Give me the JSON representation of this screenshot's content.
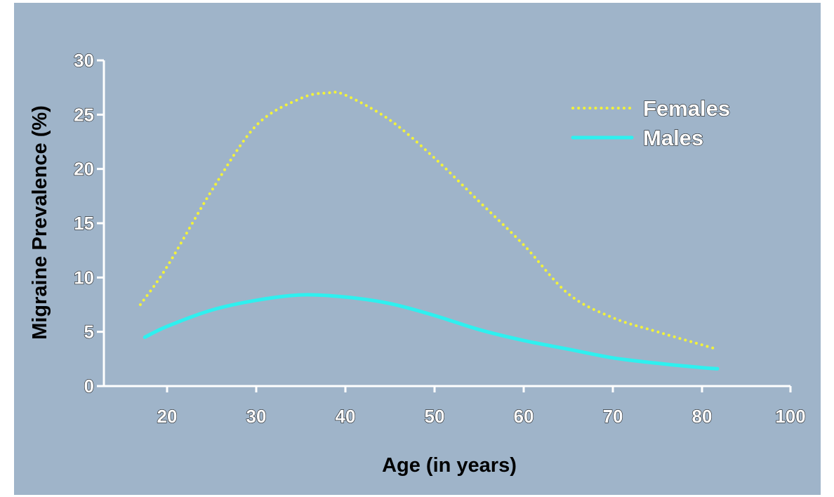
{
  "chart_data": {
    "type": "line",
    "title": "",
    "xlabel": "Age (in years)",
    "ylabel": "Migraine Prevalence (%)",
    "xlim": [
      10,
      100
    ],
    "ylim": [
      0,
      30
    ],
    "x_ticks": [
      20,
      30,
      40,
      50,
      60,
      70,
      80,
      100
    ],
    "x_tick_labels": [
      "20",
      "30",
      "40",
      "50",
      "60",
      "70",
      "80",
      "100"
    ],
    "y_ticks": [
      0,
      5,
      10,
      15,
      20,
      25,
      30
    ],
    "y_tick_labels": [
      "0",
      "5",
      "10",
      "15",
      "20",
      "25",
      "30"
    ],
    "grid": false,
    "legend": {
      "position": "top-right"
    },
    "series": [
      {
        "name": "Females",
        "style": "dotted",
        "color": "#f2f23a",
        "points": [
          [
            17,
            7.5
          ],
          [
            20,
            11
          ],
          [
            25,
            18
          ],
          [
            30,
            24
          ],
          [
            35,
            26.5
          ],
          [
            38,
            27
          ],
          [
            40,
            26.8
          ],
          [
            45,
            24.5
          ],
          [
            50,
            21
          ],
          [
            55,
            17
          ],
          [
            60,
            13
          ],
          [
            65,
            8.5
          ],
          [
            70,
            6.3
          ],
          [
            75,
            5
          ],
          [
            82.5,
            3.5
          ]
        ]
      },
      {
        "name": "Males",
        "style": "solid",
        "color": "#2ef0ef",
        "points": [
          [
            17.5,
            4.5
          ],
          [
            20,
            5.5
          ],
          [
            25,
            7
          ],
          [
            30,
            7.9
          ],
          [
            35,
            8.4
          ],
          [
            40,
            8.2
          ],
          [
            45,
            7.6
          ],
          [
            50,
            6.5
          ],
          [
            55,
            5.2
          ],
          [
            60,
            4.2
          ],
          [
            65,
            3.4
          ],
          [
            70,
            2.6
          ],
          [
            75,
            2.1
          ],
          [
            80,
            1.7
          ],
          [
            83.5,
            1.6
          ]
        ]
      }
    ]
  }
}
